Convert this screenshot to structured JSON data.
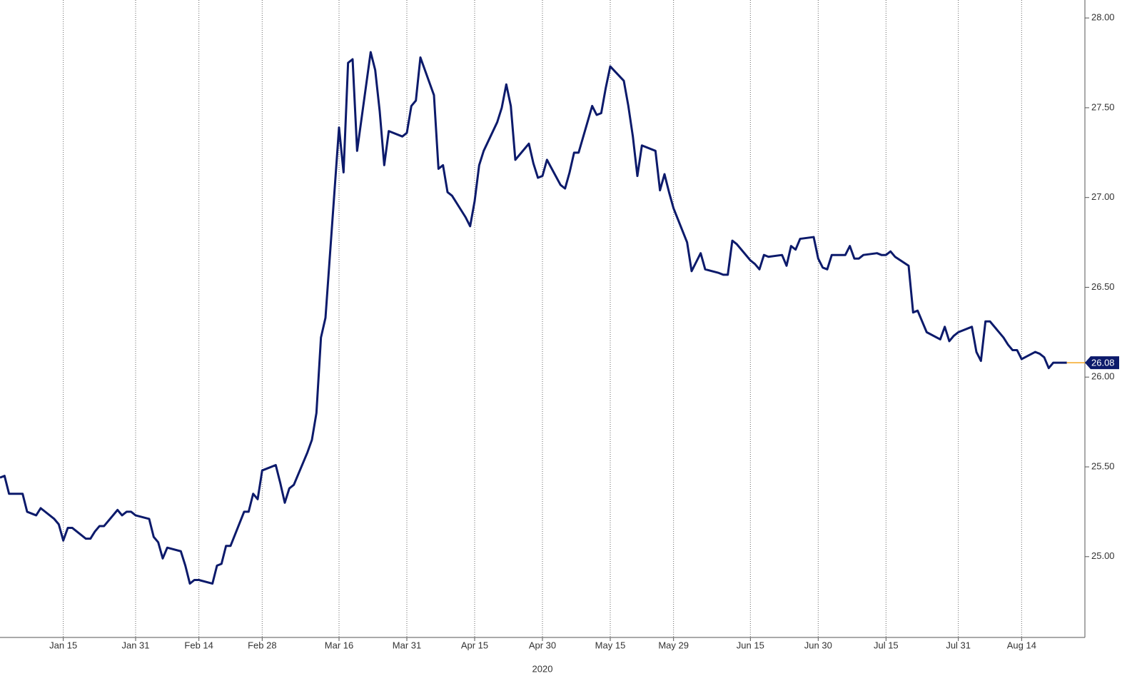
{
  "chart_data": {
    "type": "line",
    "x_label": "2020",
    "xlim": [
      "2020-01-01",
      "2020-08-28"
    ],
    "xticks": [
      {
        "value": "2020-01-15",
        "label": "Jan 15"
      },
      {
        "value": "2020-01-31",
        "label": "Jan 31"
      },
      {
        "value": "2020-02-14",
        "label": "Feb 14"
      },
      {
        "value": "2020-02-28",
        "label": "Feb 28"
      },
      {
        "value": "2020-03-16",
        "label": "Mar 16"
      },
      {
        "value": "2020-03-31",
        "label": "Mar 31"
      },
      {
        "value": "2020-04-15",
        "label": "Apr 15"
      },
      {
        "value": "2020-04-30",
        "label": "Apr 30"
      },
      {
        "value": "2020-05-15",
        "label": "May 15"
      },
      {
        "value": "2020-05-29",
        "label": "May 29"
      },
      {
        "value": "2020-06-15",
        "label": "Jun 15"
      },
      {
        "value": "2020-06-30",
        "label": "Jun 30"
      },
      {
        "value": "2020-07-15",
        "label": "Jul 15"
      },
      {
        "value": "2020-07-31",
        "label": "Jul 31"
      },
      {
        "value": "2020-08-14",
        "label": "Aug 14"
      }
    ],
    "ylim": [
      24.55,
      28.1
    ],
    "yticks": [
      {
        "value": 25,
        "label": "25.00"
      },
      {
        "value": 25.5,
        "label": "25.50"
      },
      {
        "value": 26,
        "label": "26.00"
      },
      {
        "value": 26.5,
        "label": "26.50"
      },
      {
        "value": 27,
        "label": "27.00"
      },
      {
        "value": 27.5,
        "label": "27.50"
      },
      {
        "value": 28,
        "label": "28.00"
      }
    ],
    "grid": true,
    "x": [
      "2020-01-01",
      "2020-01-02",
      "2020-01-03",
      "2020-01-06",
      "2020-01-07",
      "2020-01-08",
      "2020-01-09",
      "2020-01-10",
      "2020-01-13",
      "2020-01-14",
      "2020-01-15",
      "2020-01-16",
      "2020-01-17",
      "2020-01-20",
      "2020-01-21",
      "2020-01-22",
      "2020-01-23",
      "2020-01-24",
      "2020-01-27",
      "2020-01-28",
      "2020-01-29",
      "2020-01-30",
      "2020-01-31",
      "2020-02-03",
      "2020-02-04",
      "2020-02-05",
      "2020-02-06",
      "2020-02-07",
      "2020-02-10",
      "2020-02-11",
      "2020-02-12",
      "2020-02-13",
      "2020-02-14",
      "2020-02-17",
      "2020-02-18",
      "2020-02-19",
      "2020-02-20",
      "2020-02-21",
      "2020-02-24",
      "2020-02-25",
      "2020-02-26",
      "2020-02-27",
      "2020-02-28",
      "2020-03-02",
      "2020-03-03",
      "2020-03-04",
      "2020-03-05",
      "2020-03-06",
      "2020-03-09",
      "2020-03-10",
      "2020-03-11",
      "2020-03-12",
      "2020-03-13",
      "2020-03-16",
      "2020-03-17",
      "2020-03-18",
      "2020-03-19",
      "2020-03-20",
      "2020-03-23",
      "2020-03-24",
      "2020-03-25",
      "2020-03-26",
      "2020-03-27",
      "2020-03-30",
      "2020-03-31",
      "2020-04-01",
      "2020-04-02",
      "2020-04-03",
      "2020-04-06",
      "2020-04-07",
      "2020-04-08",
      "2020-04-09",
      "2020-04-10",
      "2020-04-13",
      "2020-04-14",
      "2020-04-15",
      "2020-04-16",
      "2020-04-17",
      "2020-04-20",
      "2020-04-21",
      "2020-04-22",
      "2020-04-23",
      "2020-04-24",
      "2020-04-27",
      "2020-04-28",
      "2020-04-29",
      "2020-04-30",
      "2020-05-01",
      "2020-05-04",
      "2020-05-05",
      "2020-05-06",
      "2020-05-07",
      "2020-05-08",
      "2020-05-11",
      "2020-05-12",
      "2020-05-13",
      "2020-05-14",
      "2020-05-15",
      "2020-05-18",
      "2020-05-19",
      "2020-05-20",
      "2020-05-21",
      "2020-05-22",
      "2020-05-25",
      "2020-05-26",
      "2020-05-27",
      "2020-05-28",
      "2020-05-29",
      "2020-06-01",
      "2020-06-02",
      "2020-06-03",
      "2020-06-04",
      "2020-06-05",
      "2020-06-08",
      "2020-06-09",
      "2020-06-10",
      "2020-06-11",
      "2020-06-12",
      "2020-06-15",
      "2020-06-16",
      "2020-06-17",
      "2020-06-18",
      "2020-06-19",
      "2020-06-22",
      "2020-06-23",
      "2020-06-24",
      "2020-06-25",
      "2020-06-26",
      "2020-06-29",
      "2020-06-30",
      "2020-07-01",
      "2020-07-02",
      "2020-07-03",
      "2020-07-06",
      "2020-07-07",
      "2020-07-08",
      "2020-07-09",
      "2020-07-10",
      "2020-07-13",
      "2020-07-14",
      "2020-07-15",
      "2020-07-16",
      "2020-07-17",
      "2020-07-20",
      "2020-07-21",
      "2020-07-22",
      "2020-07-23",
      "2020-07-24",
      "2020-07-27",
      "2020-07-28",
      "2020-07-29",
      "2020-07-30",
      "2020-07-31",
      "2020-08-03",
      "2020-08-04",
      "2020-08-05",
      "2020-08-06",
      "2020-08-07",
      "2020-08-10",
      "2020-08-11",
      "2020-08-12",
      "2020-08-13",
      "2020-08-14",
      "2020-08-17",
      "2020-08-18",
      "2020-08-19",
      "2020-08-20",
      "2020-08-21",
      "2020-08-24"
    ],
    "series": [
      {
        "color": "#0c1a6b",
        "values": [
          25.44,
          25.45,
          25.35,
          25.35,
          25.25,
          25.24,
          25.23,
          25.27,
          25.21,
          25.18,
          25.09,
          25.16,
          25.16,
          25.1,
          25.1,
          25.14,
          25.17,
          25.17,
          25.26,
          25.23,
          25.25,
          25.25,
          25.23,
          25.21,
          25.11,
          25.08,
          24.99,
          25.05,
          25.03,
          24.95,
          24.85,
          24.87,
          24.87,
          24.85,
          24.95,
          24.96,
          25.06,
          25.06,
          25.25,
          25.25,
          25.35,
          25.32,
          25.48,
          25.51,
          25.41,
          25.3,
          25.38,
          25.4,
          25.58,
          25.65,
          25.8,
          26.22,
          26.33,
          27.39,
          27.14,
          27.75,
          27.77,
          27.26,
          27.81,
          27.71,
          27.48,
          27.18,
          27.37,
          27.34,
          27.36,
          27.51,
          27.54,
          27.78,
          27.57,
          27.16,
          27.18,
          27.03,
          27.01,
          26.89,
          26.84,
          26.98,
          27.18,
          27.26,
          27.42,
          27.5,
          27.63,
          27.51,
          27.21,
          27.3,
          27.19,
          27.11,
          27.12,
          27.21,
          27.07,
          27.05,
          27.14,
          27.25,
          27.25,
          27.51,
          27.46,
          27.47,
          27.61,
          27.73,
          27.65,
          27.51,
          27.34,
          27.12,
          27.29,
          27.26,
          27.04,
          27.13,
          27.03,
          26.94,
          26.75,
          26.59,
          26.64,
          26.69,
          26.6,
          26.58,
          26.57,
          26.57,
          26.76,
          26.74,
          26.65,
          26.63,
          26.6,
          26.68,
          26.67,
          26.68,
          26.62,
          26.73,
          26.71,
          26.77,
          26.78,
          26.66,
          26.61,
          26.6,
          26.68,
          26.68,
          26.73,
          26.66,
          26.66,
          26.68,
          26.69,
          26.68,
          26.68,
          26.7,
          26.67,
          26.62,
          26.36,
          26.37,
          26.31,
          26.25,
          26.21,
          26.28,
          26.2,
          26.23,
          26.25,
          26.28,
          26.14,
          26.09,
          26.31,
          26.31,
          26.22,
          26.18,
          26.15,
          26.15,
          26.1,
          26.14,
          26.13,
          26.11,
          26.05,
          26.08,
          26.08
        ]
      }
    ]
  }
}
